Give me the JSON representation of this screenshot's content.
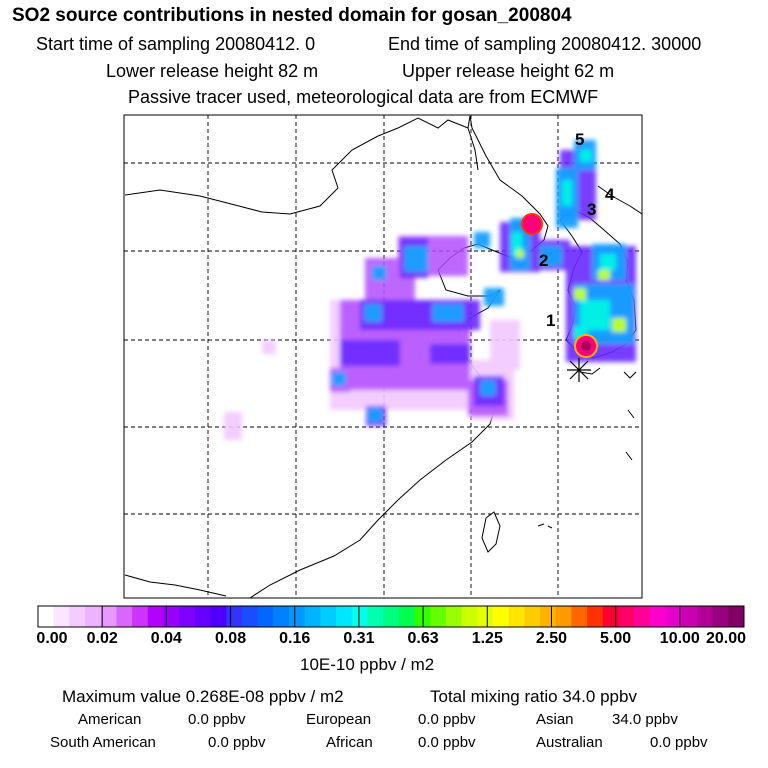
{
  "header": {
    "title": "SO2 source contributions in nested domain for gosan_200804",
    "start_sampling": "Start time of sampling 20080412.     0",
    "end_sampling": "End time of sampling 20080412. 30000",
    "lower_release": "Lower release height   82 m",
    "upper_release": "Upper release height   62 m",
    "tracer_note": "Passive tracer used, meteorological data are from ECMWF"
  },
  "map": {
    "source_labels": [
      "1",
      "2",
      "3",
      "4",
      "5"
    ],
    "receptor_marker": "gosan-receptor-star"
  },
  "colorbar": {
    "tick_labels": [
      "0.00",
      "0.02",
      "0.04",
      "0.08",
      "0.16",
      "0.31",
      "0.63",
      "1.25",
      "2.50",
      "5.00",
      "10.00",
      "20.00"
    ],
    "colors": [
      "#ffffff",
      "#fbe6ff",
      "#f4ccff",
      "#eeb3ff",
      "#e799ff",
      "#d966ff",
      "#cc33ff",
      "#b300ff",
      "#9900ff",
      "#8000ff",
      "#6600ff",
      "#4d00ff",
      "#3333ff",
      "#1a4dff",
      "#0066ff",
      "#0080ff",
      "#0099ff",
      "#00b3ff",
      "#00ccff",
      "#00e6ff",
      "#00ffe6",
      "#00ffb3",
      "#00ff80",
      "#00ff4d",
      "#33ff00",
      "#66ff00",
      "#99ff00",
      "#ccff00",
      "#e6ff00",
      "#ffff00",
      "#ffe600",
      "#ffcc00",
      "#ffb300",
      "#ff9900",
      "#ff6600",
      "#ff3300",
      "#ff0033",
      "#ff0066",
      "#ff0099",
      "#ff00cc",
      "#e600cc",
      "#cc00b3",
      "#b30099",
      "#990080",
      "#800066"
    ],
    "units": "10E-10 ppbv / m2"
  },
  "summary": {
    "max_value": "Maximum value  0.268E-08 ppbv / m2",
    "total_mixing": "Total mixing ratio       34.0 ppbv",
    "regions": {
      "american": {
        "label": "American",
        "value": "0.0 ppbv"
      },
      "european": {
        "label": "European",
        "value": "0.0 ppbv"
      },
      "asian": {
        "label": "Asian",
        "value": "34.0 ppbv"
      },
      "south_american": {
        "label": "South American",
        "value": "0.0 ppbv"
      },
      "african": {
        "label": "African",
        "value": "0.0 ppbv"
      },
      "australian": {
        "label": "Australian",
        "value": "0.0 ppbv"
      }
    }
  }
}
